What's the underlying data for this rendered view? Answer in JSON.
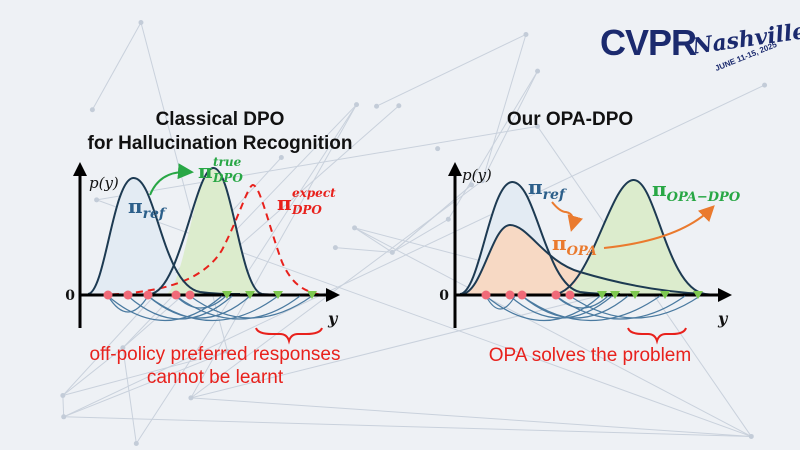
{
  "logo": {
    "cvpr": "CVPR",
    "city": "Nashville",
    "dates": "JUNE 11-15, 2025"
  },
  "left_panel": {
    "title_line1": "Classical DPO",
    "title_line2": "for Hallucination Recognition",
    "axis_y_label": "p(y)",
    "axis_x_label": "y",
    "origin_label": "0",
    "pi_ref": {
      "symbol": "π",
      "sub": "ref"
    },
    "pi_true": {
      "symbol": "π",
      "sub": "DPO",
      "sup": "true"
    },
    "pi_expect": {
      "symbol": "π",
      "sub": "DPO",
      "sup": "expect"
    },
    "caption_line1": "off-policy preferred responses",
    "caption_line2": "cannot be learnt"
  },
  "right_panel": {
    "title": "Our OPA-DPO",
    "axis_y_label": "p(y)",
    "axis_x_label": "y",
    "origin_label": "0",
    "pi_ref": {
      "symbol": "π",
      "sub": "ref"
    },
    "pi_opa": {
      "symbol": "π",
      "sub": "OPA"
    },
    "pi_opa_dpo": {
      "symbol": "π",
      "sub": "OPA−DPO"
    },
    "caption": "OPA solves the problem"
  },
  "colors": {
    "background": "#eef1f5",
    "curve": "#1d3a52",
    "true_fill": "#dceccd",
    "ref_fill": "#e3ebf3",
    "opa_fill": "#f7d9c4",
    "red": "#e8211c",
    "green": "#28a745",
    "blue": "#2c5f8a",
    "orange": "#ea7a2e",
    "pink_marker": "#f06a78",
    "green_marker": "#7ec850"
  }
}
